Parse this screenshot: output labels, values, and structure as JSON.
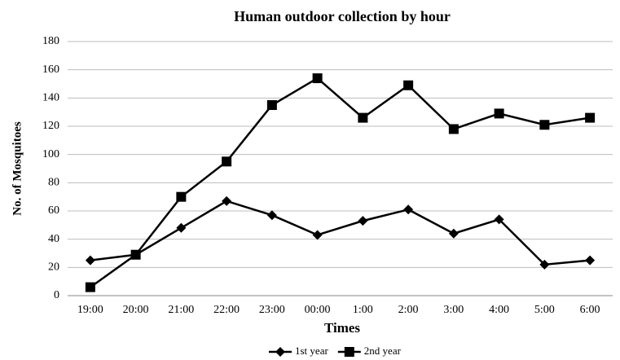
{
  "chart_data": {
    "type": "line",
    "title": "Human outdoor collection by hour",
    "x_label": "Times",
    "y_label": "No. of Mosquitoes",
    "categories": [
      "19:00",
      "20:00",
      "21:00",
      "22:00",
      "23:00",
      "00:00",
      "1:00",
      "2:00",
      "3:00",
      "4:00",
      "5:00",
      "6:00"
    ],
    "series": [
      {
        "name": "1st year",
        "color": "#000000",
        "marker": "diamond",
        "values": [
          25,
          29,
          48,
          67,
          57,
          43,
          53,
          61,
          44,
          54,
          22,
          25
        ]
      },
      {
        "name": "2nd year",
        "color": "#000000",
        "marker": "square",
        "values": [
          6,
          29,
          70,
          95,
          135,
          154,
          126,
          149,
          118,
          129,
          121,
          126
        ]
      }
    ],
    "ylim": [
      0,
      180
    ],
    "yticks": [
      0,
      20,
      40,
      60,
      80,
      100,
      120,
      140,
      160,
      180
    ],
    "grid": true,
    "legend": "bottom"
  }
}
